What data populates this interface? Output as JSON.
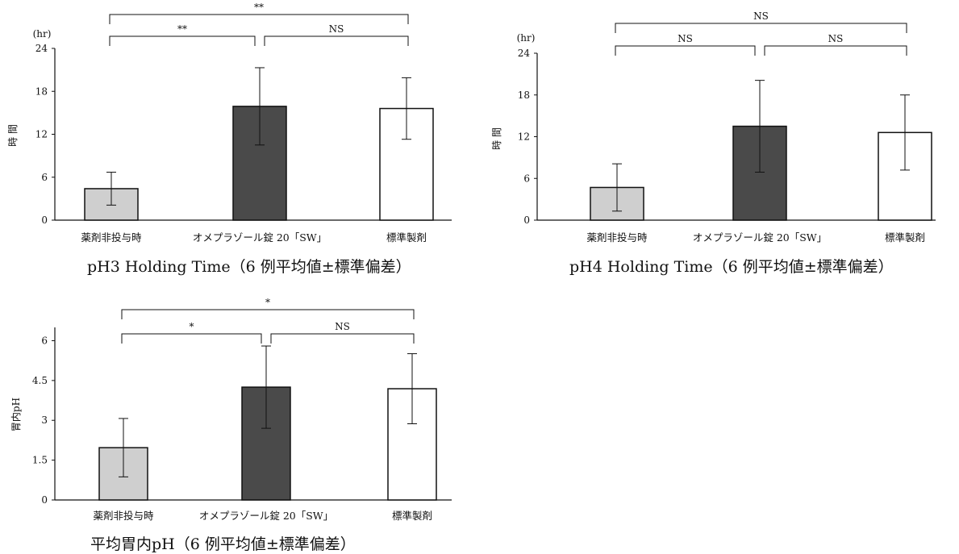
{
  "chart_data": [
    {
      "type": "bar",
      "title": "pH3 Holding Time（6 例平均値±標準偏差）",
      "ylabel": "時 間",
      "yunit": "(hr)",
      "ylim": [
        0,
        24
      ],
      "yticks": [
        0,
        6,
        12,
        18,
        24
      ],
      "categories": [
        "薬剤非投与時",
        "オメプラゾール錠 20「SW」",
        "標準製剤"
      ],
      "values": [
        4.4,
        15.9,
        15.6
      ],
      "errors": [
        2.3,
        5.4,
        4.3
      ],
      "colors": [
        "#cfcfcf",
        "#4a4a4a",
        "#ffffff"
      ],
      "comparisons": [
        {
          "from": 0,
          "to": 2,
          "label": "**"
        },
        {
          "from": 0,
          "to": 1,
          "label": "**"
        },
        {
          "from": 1,
          "to": 2,
          "label": "NS"
        }
      ]
    },
    {
      "type": "bar",
      "title": "pH4 Holding Time（6 例平均値±標準偏差）",
      "ylabel": "時 間",
      "yunit": "(hr)",
      "ylim": [
        0,
        24
      ],
      "yticks": [
        0,
        6,
        12,
        18,
        24
      ],
      "categories": [
        "薬剤非投与時",
        "オメプラゾール錠 20「SW」",
        "標準製剤"
      ],
      "values": [
        4.7,
        13.5,
        12.6
      ],
      "errors": [
        3.4,
        6.6,
        5.4
      ],
      "colors": [
        "#cfcfcf",
        "#4a4a4a",
        "#ffffff"
      ],
      "comparisons": [
        {
          "from": 0,
          "to": 2,
          "label": "NS"
        },
        {
          "from": 0,
          "to": 1,
          "label": "NS"
        },
        {
          "from": 1,
          "to": 2,
          "label": "NS"
        }
      ]
    },
    {
      "type": "bar",
      "title": "平均胃内pH（6 例平均値±標準偏差）",
      "ylabel": "胃内pH",
      "yunit": "",
      "ylim": [
        0,
        6.5
      ],
      "yticks": [
        0,
        1.5,
        3,
        4.5,
        6
      ],
      "ytick_labels": [
        "0",
        "1.5",
        "3",
        "4.5",
        "6"
      ],
      "categories": [
        "薬剤非投与時",
        "オメプラゾール錠 20「SW」",
        "標準製剤"
      ],
      "values": [
        1.97,
        4.25,
        4.19
      ],
      "errors": [
        1.1,
        1.55,
        1.32
      ],
      "colors": [
        "#cfcfcf",
        "#4a4a4a",
        "#ffffff"
      ],
      "comparisons": [
        {
          "from": 0,
          "to": 2,
          "label": "*"
        },
        {
          "from": 0,
          "to": 1,
          "label": "*"
        },
        {
          "from": 1,
          "to": 2,
          "label": "NS"
        }
      ]
    }
  ]
}
